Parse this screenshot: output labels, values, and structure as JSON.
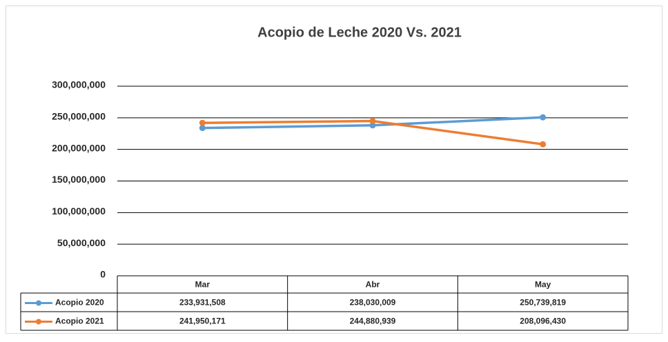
{
  "chart_data": {
    "type": "line",
    "title": "Acopio de Leche 2020 Vs. 2021",
    "categories": [
      "Mar",
      "Abr",
      "May"
    ],
    "series": [
      {
        "name": "Acopio 2020",
        "color": "#5b9bd5",
        "values": [
          233931508,
          238030009,
          250739819
        ],
        "value_labels": [
          "233,931,508",
          "238,030,009",
          "250,739,819"
        ]
      },
      {
        "name": "Acopio 2021",
        "color": "#ed7d31",
        "values": [
          241950171,
          244880939,
          208096430
        ],
        "value_labels": [
          "241,950,171",
          "244,880,939",
          "208,096,430"
        ]
      }
    ],
    "ylim": [
      0,
      300000000
    ],
    "yticks": [
      0,
      {
        "value": 50000000,
        "label": "50,000,000"
      },
      {
        "value": 100000000,
        "label": "100,000,000"
      },
      {
        "value": 150000000,
        "label": "150,000,000"
      },
      {
        "value": 200000000,
        "label": "200,000,000"
      },
      {
        "value": 250000000,
        "label": "250,000,000"
      },
      {
        "value": 300000000,
        "label": "300,000,000"
      }
    ],
    "grid": true,
    "data_table": true
  }
}
